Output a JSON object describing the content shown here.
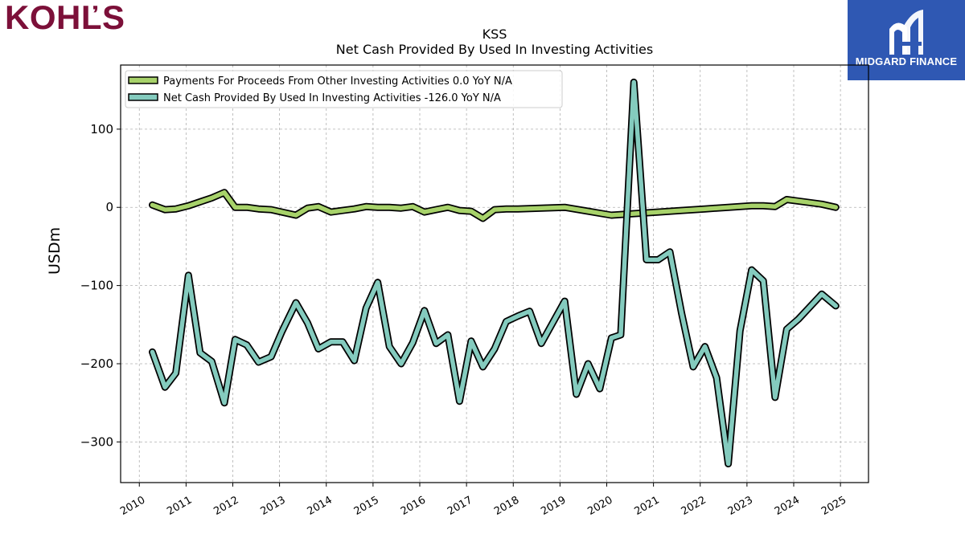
{
  "brand": {
    "logo_left": "KOHĽS",
    "logo_right": "MIDGARD FINANCE",
    "accent_kohls": "#7c1039",
    "accent_midgard": "#2f58b3"
  },
  "chart_data": {
    "type": "line",
    "title": "KSS",
    "subtitle": "Net Cash Provided By Used In Investing Activities",
    "ylabel": "USDm",
    "xlabel": "",
    "xlim": [
      2009.6,
      2025.6
    ],
    "ylim": [
      -352,
      182
    ],
    "x_ticks": [
      2010,
      2011,
      2012,
      2013,
      2014,
      2015,
      2016,
      2017,
      2018,
      2019,
      2020,
      2021,
      2022,
      2023,
      2024,
      2025
    ],
    "y_ticks": [
      100,
      0,
      -100,
      -200,
      -300
    ],
    "grid": true,
    "legend_position": "top-left",
    "series": [
      {
        "name": "Payments For Proceeds From Other Investing Activities  0.0 YoY N/A",
        "color": "#a7d26a",
        "x": [
          2010.28,
          2010.55,
          2010.78,
          2011.05,
          2011.55,
          2011.82,
          2012.05,
          2012.3,
          2012.55,
          2012.82,
          2013.05,
          2013.35,
          2013.6,
          2013.83,
          2014.1,
          2014.35,
          2014.6,
          2014.85,
          2015.1,
          2015.35,
          2015.6,
          2015.85,
          2016.1,
          2016.35,
          2016.6,
          2016.85,
          2017.1,
          2017.35,
          2017.6,
          2017.85,
          2018.1,
          2018.6,
          2019.1,
          2019.6,
          2020.1,
          2020.6,
          2021.1,
          2021.6,
          2022.1,
          2022.6,
          2023.1,
          2023.35,
          2023.6,
          2023.85,
          2024.1,
          2024.6,
          2024.9
        ],
        "values": [
          3,
          -3,
          -2,
          2,
          12,
          19,
          0,
          0,
          -2,
          -3,
          -6,
          -10,
          -1,
          1,
          -6,
          -4,
          -2,
          1,
          0,
          0,
          -1,
          1,
          -6,
          -3,
          0,
          -4,
          -5,
          -14,
          -3,
          -2,
          -2,
          -1,
          0,
          -5,
          -10,
          -8,
          -6,
          -4,
          -2,
          0,
          2,
          2,
          1,
          10,
          8,
          4,
          0
        ]
      },
      {
        "name": "Net Cash Provided By Used In Investing Activities  -126.0 YoY N/A",
        "color": "#84cbbe",
        "x": [
          2010.28,
          2010.55,
          2010.78,
          2011.05,
          2011.3,
          2011.55,
          2011.82,
          2012.05,
          2012.3,
          2012.55,
          2012.82,
          2013.05,
          2013.35,
          2013.6,
          2013.83,
          2014.1,
          2014.35,
          2014.6,
          2014.85,
          2015.1,
          2015.35,
          2015.6,
          2015.85,
          2016.1,
          2016.35,
          2016.6,
          2016.85,
          2017.1,
          2017.35,
          2017.6,
          2017.85,
          2018.1,
          2018.35,
          2018.6,
          2019.1,
          2019.35,
          2019.6,
          2019.85,
          2020.1,
          2020.3,
          2020.58,
          2020.85,
          2021.1,
          2021.35,
          2021.6,
          2021.85,
          2022.1,
          2022.35,
          2022.6,
          2022.85,
          2023.1,
          2023.35,
          2023.6,
          2023.85,
          2024.1,
          2024.6,
          2024.9
        ],
        "values": [
          -185,
          -230,
          -212,
          -87,
          -186,
          -197,
          -250,
          -169,
          -176,
          -198,
          -191,
          -159,
          -122,
          -148,
          -181,
          -172,
          -172,
          -196,
          -129,
          -96,
          -178,
          -200,
          -173,
          -132,
          -174,
          -163,
          -248,
          -171,
          -204,
          -181,
          -146,
          -139,
          -133,
          -174,
          -120,
          -239,
          -200,
          -232,
          -167,
          -163,
          160,
          -67,
          -67,
          -57,
          -135,
          -204,
          -178,
          -218,
          -328,
          -158,
          -80,
          -94,
          -243,
          -156,
          -143,
          -111,
          -126
        ]
      }
    ]
  }
}
